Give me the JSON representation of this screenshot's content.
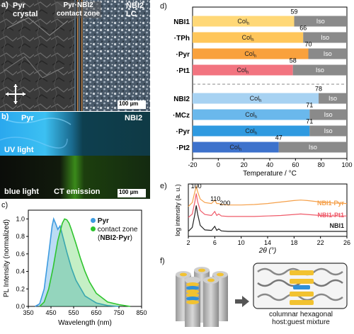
{
  "panels": {
    "a": {
      "label": "a)",
      "left_title_line1": "Pyr",
      "left_title_line2": "crystal",
      "mid_title_line1": "Pyr·NBI2",
      "mid_title_line2": "contact zone",
      "right_title_line1": "NBI2",
      "right_title_line2": "LC",
      "scalebar": "100 µm"
    },
    "b": {
      "label": "b)",
      "left_title": "Pyr",
      "right_title": "NBI2",
      "uv_label": "UV light",
      "blue_label": "blue light",
      "ct_label": "CT emission",
      "scalebar": "100 µm"
    },
    "c": {
      "label": "c)",
      "legend_pyr": "Pyr",
      "legend_contact_line1": "contact zone",
      "legend_contact_line2_pre": "(",
      "legend_contact_line2_bold": "NBI2·Pyr",
      "legend_contact_line2_post": ")",
      "colors": {
        "pyr": "#3d9be0",
        "contact": "#2ec42e"
      }
    },
    "d": {
      "label": "d)",
      "phase_col": "Colh",
      "phase_iso": "Iso",
      "colors": {
        "iso": "#8a8a8a"
      }
    },
    "e": {
      "label": "e)",
      "peaks": [
        "100",
        "110",
        "200"
      ],
      "series_labels": [
        "NBI1·Pyr",
        "NBI1·Pt1",
        "NBI1"
      ],
      "colors": {
        "pyr": "#f5a04a",
        "pt1": "#ef5b6a",
        "nbi1": "#222222"
      }
    },
    "f": {
      "label": "f)",
      "caption_line1": "columnar hexagonal",
      "caption_line2": "host:guest mixture"
    }
  },
  "chart_data": [
    {
      "type": "area",
      "panel": "c",
      "xlabel": "Wavelength (nm)",
      "ylabel": "PL Intensity (normalized)",
      "xlim": [
        350,
        850
      ],
      "ylim": [
        0,
        1.1
      ],
      "xticks": [
        "350",
        "450",
        "550",
        "650",
        "750",
        "850"
      ],
      "yticks": [
        "0.0",
        "0.2",
        "0.4",
        "0.6",
        "0.8",
        "1.0"
      ],
      "series": [
        {
          "name": "Pyr",
          "x": [
            380,
            400,
            420,
            440,
            455,
            462,
            470,
            480,
            490,
            500,
            520,
            540,
            560,
            600,
            650,
            700,
            750
          ],
          "y": [
            0,
            0.03,
            0.2,
            0.6,
            0.92,
            1.0,
            0.95,
            0.88,
            0.92,
            0.82,
            0.62,
            0.44,
            0.3,
            0.12,
            0.04,
            0.01,
            0
          ]
        },
        {
          "name": "contact zone (NBI2·Pyr)",
          "x": [
            400,
            420,
            440,
            460,
            480,
            500,
            510,
            520,
            530,
            540,
            560,
            580,
            600,
            620,
            650,
            700,
            750,
            800
          ],
          "y": [
            0,
            0.05,
            0.2,
            0.45,
            0.75,
            0.95,
            1.0,
            0.99,
            0.95,
            0.88,
            0.72,
            0.55,
            0.4,
            0.28,
            0.15,
            0.05,
            0.02,
            0
          ]
        }
      ]
    },
    {
      "type": "bar",
      "panel": "d",
      "orientation": "horizontal",
      "xlabel": "Temperature / °C",
      "xlim": [
        -20,
        100
      ],
      "xticks": [
        "-20",
        "0",
        "20",
        "40",
        "60",
        "80",
        "100"
      ],
      "categories": [
        "NBI1",
        "·TPh",
        "·Pyr",
        "·Pt1",
        "NBI2",
        "·MCz",
        "·Pyr",
        "·Pt2"
      ],
      "values": [
        59,
        66,
        70,
        58,
        78,
        71,
        71,
        47
      ],
      "value_labels": [
        "59",
        "66",
        "70",
        "58",
        "78",
        "71",
        "71",
        "47"
      ],
      "colors": [
        "#ffd877",
        "#ffc65a",
        "#f9a13c",
        "#f27480",
        "#a7d2f2",
        "#6ab8ec",
        "#2f9ae0",
        "#3d72cc"
      ]
    },
    {
      "type": "line",
      "panel": "e",
      "xlabel": "2θ (°)",
      "ylabel": "log intensity (a. u.)",
      "xlim": [
        2,
        26
      ],
      "xticks": [
        "2",
        "6",
        "10",
        "14",
        "18",
        "22",
        "26"
      ],
      "series": [
        {
          "name": "NBI1·Pyr",
          "x": [
            2,
            2.6,
            3,
            3.2,
            3.4,
            3.8,
            4.5,
            5.5,
            6.0,
            6.3,
            6.6,
            7,
            8,
            10,
            12,
            14,
            16,
            18,
            19,
            20,
            22,
            24,
            26
          ],
          "y": [
            0.6,
            0.68,
            0.9,
            1.0,
            0.9,
            0.75,
            0.68,
            0.66,
            0.73,
            0.66,
            0.66,
            0.64,
            0.63,
            0.63,
            0.64,
            0.66,
            0.69,
            0.72,
            0.73,
            0.72,
            0.69,
            0.67,
            0.66
          ]
        },
        {
          "name": "NBI1·Pt1",
          "x": [
            2,
            2.6,
            3,
            3.2,
            3.4,
            3.8,
            4.5,
            5.5,
            6.0,
            6.3,
            6.6,
            7,
            8,
            10,
            12,
            14,
            16,
            18,
            19,
            20,
            22,
            24,
            26
          ],
          "y": [
            0.38,
            0.45,
            0.7,
            0.86,
            0.7,
            0.52,
            0.44,
            0.42,
            0.5,
            0.42,
            0.45,
            0.41,
            0.4,
            0.4,
            0.4,
            0.41,
            0.42,
            0.44,
            0.45,
            0.44,
            0.42,
            0.41,
            0.41
          ]
        },
        {
          "name": "NBI1",
          "x": [
            2,
            2.6,
            3,
            3.2,
            3.4,
            3.8,
            4.5,
            5.5,
            6.0,
            6.3,
            6.6,
            7,
            8,
            10,
            12,
            14,
            16,
            18,
            19,
            20,
            22,
            24,
            26
          ],
          "y": [
            0.1,
            0.18,
            0.45,
            0.62,
            0.45,
            0.22,
            0.13,
            0.12,
            0.2,
            0.12,
            0.15,
            0.11,
            0.1,
            0.1,
            0.1,
            0.1,
            0.1,
            0.1,
            0.1,
            0.1,
            0.1,
            0.1,
            0.1
          ]
        }
      ]
    }
  ]
}
